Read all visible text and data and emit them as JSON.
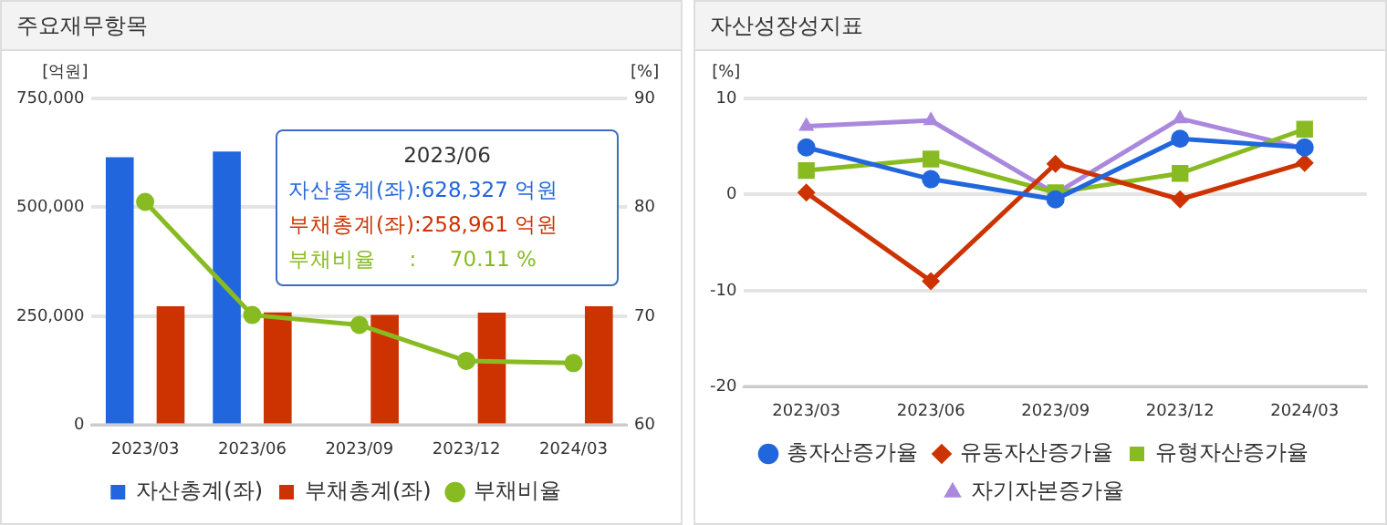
{
  "chart_data": [
    {
      "type": "bar",
      "title": "주요재무항목",
      "ylabel": "[억원]",
      "y2label": "[%]",
      "categories": [
        "2023/03",
        "2023/06",
        "2023/09",
        "2023/12",
        "2024/03"
      ],
      "series": [
        {
          "name": "자산총계(좌)",
          "color": "#2266dd",
          "values": [
            615000,
            628327,
            null,
            null,
            null
          ]
        },
        {
          "name": "부채총계(좌)",
          "color": "#cc3300",
          "values": [
            273000,
            258961,
            253000,
            258000,
            273000
          ]
        },
        {
          "name": "부채비율",
          "type": "line",
          "axis": "y2",
          "color": "#88bb22",
          "marker": "circle",
          "values": [
            80.5,
            70.11,
            69.2,
            65.9,
            65.7
          ]
        }
      ],
      "ylim": [
        0,
        750000
      ],
      "yticks": [
        0,
        {
          "value": 250000,
          "label": "250,000"
        },
        {
          "value": 500000,
          "label": "500,000"
        },
        {
          "value": 750000,
          "label": "750,000"
        }
      ],
      "y2lim": [
        60,
        90
      ],
      "y2ticks": [
        60,
        70,
        80,
        90
      ],
      "grid": "y",
      "legend": "bottom",
      "annotations": [
        "2023/06",
        "자산총계(좌):628,327 억원",
        "부채총계(좌):258,961 억원",
        "부채비율     :     70.11 %"
      ]
    },
    {
      "type": "line",
      "title": "자산성장성지표",
      "ylabel": "[%]",
      "categories": [
        "2023/03",
        "2023/06",
        "2023/09",
        "2023/12",
        "2024/03"
      ],
      "series": [
        {
          "name": "총자산증가율",
          "color": "#2266dd",
          "marker": "circle",
          "values": [
            4.9,
            1.6,
            -0.5,
            5.8,
            4.9
          ]
        },
        {
          "name": "유동자산증가율",
          "color": "#cc3300",
          "marker": "diamond",
          "values": [
            0.2,
            -9.0,
            3.2,
            -0.5,
            3.3
          ]
        },
        {
          "name": "유형자산증가율",
          "color": "#88bb22",
          "marker": "square",
          "values": [
            2.5,
            3.7,
            0.2,
            2.2,
            6.8
          ]
        },
        {
          "name": "자기자본증가율",
          "color": "#aa88dd",
          "marker": "triangle",
          "values": [
            7.1,
            7.7,
            0.1,
            7.9,
            4.8
          ]
        }
      ],
      "ylim": [
        -20,
        10
      ],
      "yticks": [
        -20,
        -10,
        0,
        10
      ],
      "grid": "y",
      "legend": "bottom"
    }
  ]
}
